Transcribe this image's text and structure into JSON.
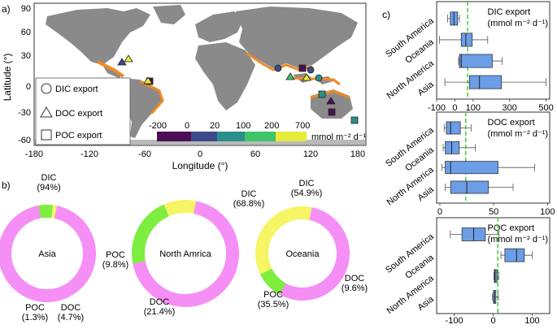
{
  "panel_labels": {
    "a": "a)",
    "b": "b)",
    "c": "c)"
  },
  "map": {
    "xlabel": "Longitude (°)",
    "ylabel": "Latitude (°)",
    "x_ticks": [
      "-180",
      "-120",
      "-60",
      "0",
      "60",
      "120",
      "180"
    ],
    "y_ticks": [
      "90",
      "60",
      "30",
      "0",
      "-30",
      "-60"
    ],
    "legend_markers": [
      {
        "shape": "circle",
        "label": "DIC export"
      },
      {
        "shape": "triangle",
        "label": "DOC export"
      },
      {
        "shape": "square",
        "label": "POC export"
      }
    ],
    "colorbar": {
      "ticks": [
        "-200",
        "0",
        "20",
        "100",
        "200",
        "700"
      ],
      "unit": "mmol m⁻² d⁻¹",
      "colors": [
        "#4a0f55",
        "#3e4a8c",
        "#2a8e8a",
        "#3fc46a",
        "#e6ec3a"
      ]
    },
    "colors": {
      "land": "#8a8a8a",
      "coast": "#f08a24",
      "ocean": "#ffffff"
    }
  },
  "chart_data": [
    {
      "type": "pie",
      "title": "Asia",
      "categories": [
        "DIC",
        "DOC",
        "POC"
      ],
      "values": [
        94,
        4.7,
        1.3
      ],
      "labels": [
        "DIC\n(94%)",
        "DOC\n(4.7%)",
        "POC\n(1.3%)"
      ],
      "colors": [
        "#f58ef5",
        "#7ded3f",
        "#f5f566"
      ]
    },
    {
      "type": "pie",
      "title": "North Amrica",
      "categories": [
        "DIC",
        "DOC",
        "POC"
      ],
      "values": [
        68.8,
        21.4,
        9.8
      ],
      "labels": [
        "DIC\n(68.8%)",
        "DOC\n(21.4%)",
        "POC\n(9.8%)"
      ],
      "colors": [
        "#f58ef5",
        "#7ded3f",
        "#f5f566"
      ]
    },
    {
      "type": "pie",
      "title": "Oceania",
      "categories": [
        "DIC",
        "DOC",
        "POC"
      ],
      "values": [
        54.9,
        9.6,
        35.5
      ],
      "labels": [
        "DIC\n(54.9%)",
        "DOC\n(9.6%)",
        "POC\n(35.5%)"
      ],
      "colors": [
        "#f58ef5",
        "#7ded3f",
        "#f5f566"
      ]
    },
    {
      "type": "box",
      "title": "DIC export",
      "subtitle": "(mmol m⁻² d⁻¹)",
      "categories": [
        "South America",
        "Oceania",
        "North America",
        "Asia"
      ],
      "xlim": [
        -100,
        520
      ],
      "x_ticks": [
        -100,
        0,
        100,
        300,
        500
      ],
      "reference_line": 70,
      "boxes": [
        {
          "whisker_low": -40,
          "q1": -25,
          "median": -5,
          "q3": 15,
          "whisker_high": 25
        },
        {
          "whisker_low": -85,
          "q1": 35,
          "median": 60,
          "q3": 95,
          "whisker_high": 180
        },
        {
          "whisker_low": 20,
          "q1": 25,
          "median": 35,
          "q3": 205,
          "whisker_high": 260
        },
        {
          "whisker_low": -55,
          "q1": 80,
          "median": 135,
          "q3": 255,
          "whisker_high": 500
        }
      ]
    },
    {
      "type": "box",
      "title": "DOC export",
      "subtitle": "(mmol m⁻² d⁻¹)",
      "categories": [
        "South America",
        "Oceania",
        "North America",
        "Asia"
      ],
      "xlim": [
        -3,
        102
      ],
      "x_ticks": [
        0,
        50,
        100
      ],
      "reference_line": 24,
      "boxes": [
        {
          "whisker_low": 4,
          "q1": 6,
          "median": 10,
          "q3": 19,
          "whisker_high": 29
        },
        {
          "whisker_low": 3,
          "q1": 5,
          "median": 11,
          "q3": 18,
          "whisker_high": 33
        },
        {
          "whisker_low": 2,
          "q1": 5,
          "median": 10,
          "q3": 54,
          "whisker_high": 88
        },
        {
          "whisker_low": 5,
          "q1": 10,
          "median": 25,
          "q3": 45,
          "whisker_high": 68
        }
      ]
    },
    {
      "type": "box",
      "title": "POC export",
      "subtitle": "(mmol m⁻² d⁻¹)",
      "categories": [
        "South America",
        "Oceania",
        "North America",
        "Asia"
      ],
      "xlim": [
        -145,
        145
      ],
      "x_ticks": [
        -100,
        0,
        100
      ],
      "reference_line": 12,
      "boxes": [
        {
          "whisker_low": -110,
          "q1": -80,
          "median": -50,
          "q3": -20,
          "whisker_high": 15
        },
        {
          "whisker_low": 20,
          "q1": 30,
          "median": 60,
          "q3": 80,
          "whisker_high": 100
        },
        {
          "whisker_low": 2,
          "q1": 3,
          "median": 5,
          "q3": 10,
          "whisker_high": 14
        },
        {
          "whisker_low": -2,
          "q1": 1,
          "median": 3,
          "q3": 7,
          "whisker_high": 13
        }
      ]
    }
  ]
}
